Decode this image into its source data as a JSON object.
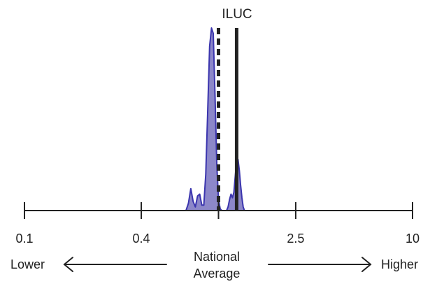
{
  "chart_data": {
    "type": "area",
    "title": "ILUC",
    "x_scale": "log",
    "x_ticks": [
      0.1,
      0.4,
      1,
      2.5,
      10
    ],
    "x_tick_labels": [
      "0.1",
      "0.4",
      "",
      "2.5",
      "10"
    ],
    "xlim": [
      0.1,
      10
    ],
    "grid": false,
    "legend": "none",
    "density": {
      "x": [
        0.68,
        0.7,
        0.72,
        0.74,
        0.76,
        0.78,
        0.8,
        0.82,
        0.84,
        0.86,
        0.88,
        0.9,
        0.92,
        0.94,
        0.96,
        0.98,
        1.0,
        1.02,
        1.04,
        1.06,
        1.08,
        1.1,
        1.12,
        1.14,
        1.16,
        1.18,
        1.2,
        1.22,
        1.24,
        1.26,
        1.28,
        1.3,
        1.32,
        1.34,
        1.36,
        1.38,
        1.4,
        1.42,
        1.44,
        1.46,
        1.48,
        1.5
      ],
      "y": [
        0.0,
        0.04,
        0.12,
        0.05,
        0.02,
        0.08,
        0.09,
        0.03,
        0.03,
        0.2,
        0.55,
        0.9,
        1.0,
        0.97,
        0.62,
        0.25,
        0.06,
        0.01,
        0.0,
        0.0,
        0.0,
        0.0,
        0.02,
        0.06,
        0.09,
        0.07,
        0.1,
        0.19,
        0.27,
        0.28,
        0.22,
        0.14,
        0.07,
        0.02,
        0.0,
        0.0,
        0.0,
        0.0,
        0.0,
        0.0,
        0.0,
        0.0
      ]
    },
    "reference_lines": [
      {
        "value": 1.0,
        "style": "dashed"
      },
      {
        "value": 1.24,
        "style": "solid",
        "label": "ILUC"
      }
    ],
    "colors": {
      "fill": "#8c87c9",
      "stroke": "#3b35ae",
      "lines": "#222222"
    }
  },
  "annotations": {
    "lower": "Lower",
    "higher": "Higher",
    "national_line1": "National",
    "national_line2": "Average"
  }
}
